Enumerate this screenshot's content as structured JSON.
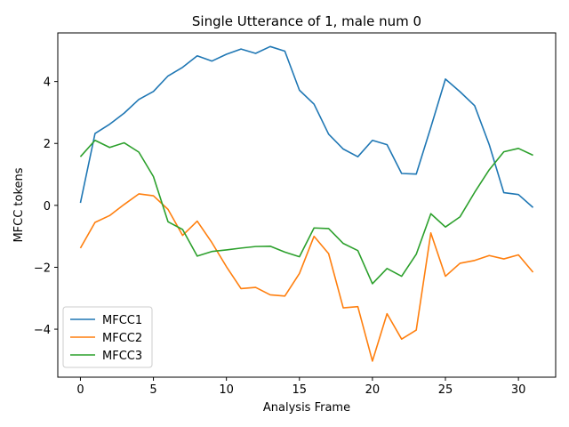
{
  "chart_data": {
    "type": "line",
    "title": "Single Utterance of 1, male num 0",
    "xlabel": "Analysis Frame",
    "ylabel": "MFCC tokens",
    "xlim": [
      -1.55,
      32.55
    ],
    "ylim": [
      -5.55,
      5.57
    ],
    "xticks": [
      0,
      5,
      10,
      15,
      20,
      25,
      30
    ],
    "yticks": [
      -4,
      -2,
      0,
      2,
      4
    ],
    "grid": false,
    "legend_position": "lower-left",
    "x": [
      0,
      1,
      2,
      3,
      4,
      5,
      6,
      7,
      8,
      9,
      10,
      11,
      12,
      13,
      14,
      15,
      16,
      17,
      18,
      19,
      20,
      21,
      22,
      23,
      24,
      25,
      26,
      27,
      28,
      29,
      30,
      31
    ],
    "series": [
      {
        "name": "MFCC1",
        "color": "#1f77b4",
        "values": [
          0.08,
          2.32,
          2.62,
          2.98,
          3.42,
          3.68,
          4.18,
          4.46,
          4.83,
          4.66,
          4.88,
          5.05,
          4.91,
          5.13,
          4.98,
          3.72,
          3.27,
          2.3,
          1.82,
          1.57,
          2.1,
          1.96,
          1.03,
          1.01,
          2.52,
          4.08,
          3.67,
          3.22,
          1.96,
          0.41,
          0.35,
          -0.07
        ]
      },
      {
        "name": "MFCC2",
        "color": "#ff7f0e",
        "values": [
          -1.38,
          -0.55,
          -0.33,
          0.03,
          0.37,
          0.31,
          -0.13,
          -0.97,
          -0.51,
          -1.2,
          -1.98,
          -2.69,
          -2.65,
          -2.89,
          -2.93,
          -2.2,
          -1.0,
          -1.56,
          -3.31,
          -3.27,
          -5.03,
          -3.5,
          -4.32,
          -4.03,
          -0.89,
          -2.29,
          -1.87,
          -1.78,
          -1.62,
          -1.73,
          -1.6,
          -2.16
        ]
      },
      {
        "name": "MFCC3",
        "color": "#2ca02c",
        "values": [
          1.57,
          2.1,
          1.87,
          2.02,
          1.72,
          0.93,
          -0.53,
          -0.78,
          -1.64,
          -1.49,
          -1.44,
          -1.38,
          -1.33,
          -1.32,
          -1.51,
          -1.66,
          -0.73,
          -0.75,
          -1.23,
          -1.46,
          -2.53,
          -2.04,
          -2.29,
          -1.58,
          -0.27,
          -0.7,
          -0.37,
          0.42,
          1.15,
          1.73,
          1.84,
          1.62
        ]
      }
    ]
  }
}
